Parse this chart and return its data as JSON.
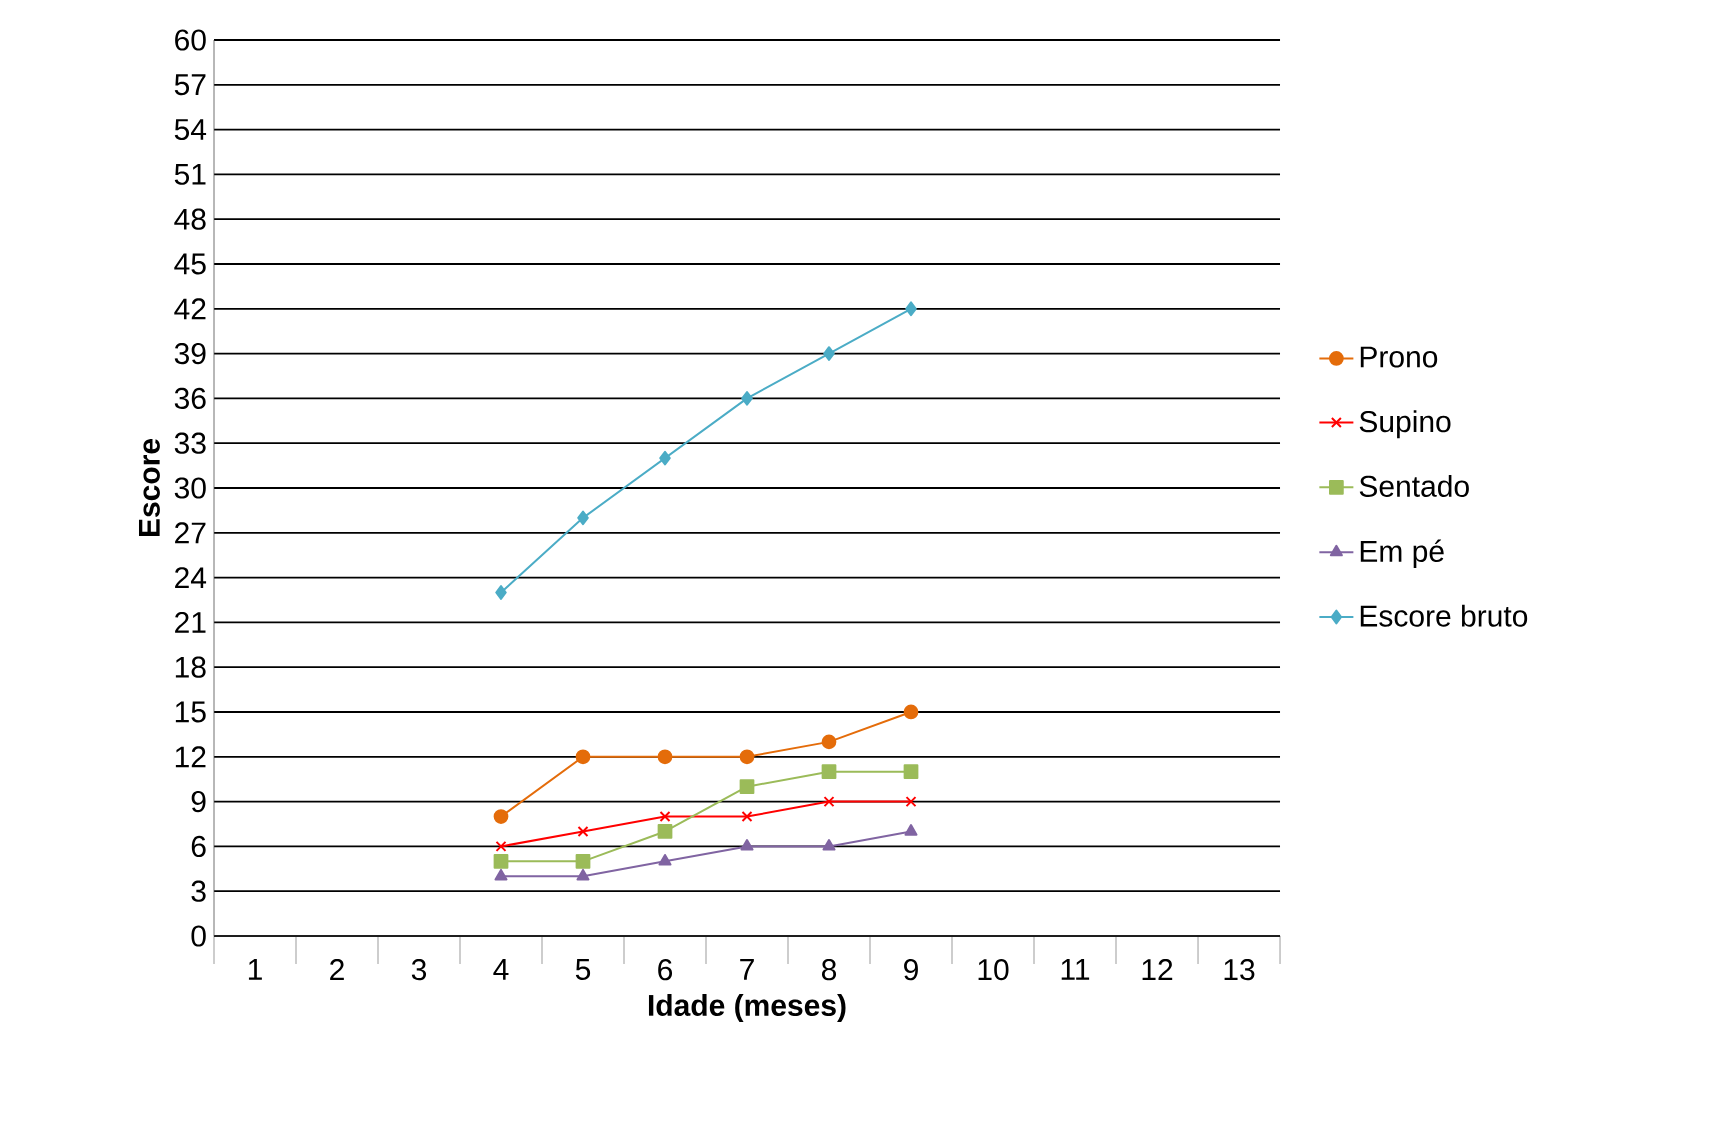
{
  "chart_data": {
    "type": "line",
    "xlabel": "Idade (meses)",
    "ylabel": "Escore",
    "categories": [
      "1",
      "2",
      "3",
      "4",
      "5",
      "6",
      "7",
      "8",
      "9",
      "10",
      "11",
      "12",
      "13"
    ],
    "series": [
      {
        "name": "Prono",
        "color": "#e46c0a",
        "marker": "circle",
        "values": [
          null,
          null,
          null,
          8,
          12,
          12,
          12,
          13,
          15,
          null,
          null,
          null,
          null
        ]
      },
      {
        "name": "Supino",
        "color": "#ff0000",
        "marker": "cross",
        "values": [
          null,
          null,
          null,
          6,
          7,
          8,
          8,
          9,
          9,
          null,
          null,
          null,
          null
        ]
      },
      {
        "name": "Sentado",
        "color": "#9bbb59",
        "marker": "square",
        "values": [
          null,
          null,
          null,
          5,
          5,
          7,
          10,
          11,
          11,
          null,
          null,
          null,
          null
        ]
      },
      {
        "name": "Em pé",
        "color": "#8064a2",
        "marker": "triangle",
        "values": [
          null,
          null,
          null,
          4,
          4,
          5,
          6,
          6,
          7,
          null,
          null,
          null,
          null
        ]
      },
      {
        "name": "Escore bruto",
        "color": "#4bacc6",
        "marker": "diamond",
        "values": [
          null,
          null,
          null,
          23,
          28,
          32,
          36,
          39,
          42,
          null,
          null,
          null,
          null
        ]
      }
    ],
    "ylim": [
      0,
      60
    ],
    "yticks": [
      0,
      3,
      6,
      9,
      12,
      15,
      18,
      21,
      24,
      27,
      30,
      33,
      36,
      39,
      42,
      45,
      48,
      51,
      54,
      57,
      60
    ],
    "grid": "y",
    "legend": "right"
  }
}
